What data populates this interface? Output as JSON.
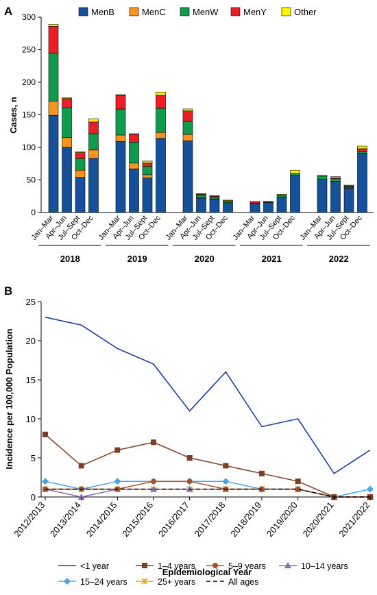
{
  "chart_data": [
    {
      "panel": "A",
      "type": "bar",
      "stacked": true,
      "ylabel": "Cases, n",
      "ylim": [
        0,
        300
      ],
      "yticks": [
        0,
        50,
        100,
        150,
        200,
        250,
        300
      ],
      "legend_position": "top",
      "categories": [
        "Jan–Mar",
        "Apr–Jun",
        "Jul–Sept",
        "Oct–Dec"
      ],
      "groups": [
        {
          "label": "2018",
          "bars": [
            {
              "MenB": 149,
              "MenC": 22,
              "MenW": 74,
              "MenY": 41,
              "Other": 3
            },
            {
              "MenB": 100,
              "MenC": 15,
              "MenW": 46,
              "MenY": 14,
              "Other": 1
            },
            {
              "MenB": 54,
              "MenC": 11,
              "MenW": 18,
              "MenY": 9,
              "Other": 1
            },
            {
              "MenB": 83,
              "MenC": 13,
              "MenW": 25,
              "MenY": 18,
              "Other": 5
            }
          ]
        },
        {
          "label": "2019",
          "bars": [
            {
              "MenB": 109,
              "MenC": 10,
              "MenW": 40,
              "MenY": 21,
              "Other": 1
            },
            {
              "MenB": 67,
              "MenC": 9,
              "MenW": 32,
              "MenY": 12,
              "Other": 1
            },
            {
              "MenB": 53,
              "MenC": 5,
              "MenW": 13,
              "MenY": 5,
              "Other": 3
            },
            {
              "MenB": 114,
              "MenC": 9,
              "MenW": 37,
              "MenY": 20,
              "Other": 5
            }
          ]
        },
        {
          "label": "2020",
          "bars": [
            {
              "MenB": 110,
              "MenC": 10,
              "MenW": 20,
              "MenY": 16,
              "Other": 3
            },
            {
              "MenB": 22,
              "MenC": 1,
              "MenW": 4,
              "MenY": 1,
              "Other": 1
            },
            {
              "MenB": 20,
              "MenC": 1,
              "MenW": 3,
              "MenY": 1,
              "Other": 1
            },
            {
              "MenB": 15,
              "MenC": 0,
              "MenW": 3,
              "MenY": 0,
              "Other": 1
            }
          ]
        },
        {
          "label": "2021",
          "bars": [
            {
              "MenB": 13,
              "MenC": 0,
              "MenW": 1,
              "MenY": 3,
              "Other": 0
            },
            {
              "MenB": 15,
              "MenC": 0,
              "MenW": 1,
              "MenY": 1,
              "Other": 0
            },
            {
              "MenB": 24,
              "MenC": 0,
              "MenW": 3,
              "MenY": 0,
              "Other": 1
            },
            {
              "MenB": 57,
              "MenC": 0,
              "MenW": 3,
              "MenY": 0,
              "Other": 5
            }
          ]
        },
        {
          "label": "2022",
          "bars": [
            {
              "MenB": 51,
              "MenC": 0,
              "MenW": 5,
              "MenY": 0,
              "Other": 1
            },
            {
              "MenB": 48,
              "MenC": 0,
              "MenW": 4,
              "MenY": 1,
              "Other": 2
            },
            {
              "MenB": 37,
              "MenC": 1,
              "MenW": 2,
              "MenY": 1,
              "Other": 1
            },
            {
              "MenB": 91,
              "MenC": 0,
              "MenW": 2,
              "MenY": 5,
              "Other": 4
            }
          ]
        }
      ],
      "series": [
        {
          "name": "MenB",
          "color": "#15509b"
        },
        {
          "name": "MenC",
          "color": "#f7931e"
        },
        {
          "name": "MenW",
          "color": "#0e9b4b"
        },
        {
          "name": "MenY",
          "color": "#ee1c25"
        },
        {
          "name": "Other",
          "color": "#fff200"
        }
      ]
    },
    {
      "panel": "B",
      "type": "line",
      "xlabel": "Epidemiological Year",
      "ylabel": "Incidence per 100,000 Population",
      "ylim": [
        0,
        25
      ],
      "yticks": [
        0,
        5,
        10,
        15,
        20,
        25
      ],
      "legend_position": "bottom",
      "x": [
        "2012/2013",
        "2013/2014",
        "2014/2015",
        "2015/2016",
        "2016/2017",
        "2017/2018",
        "2018/2019",
        "2019/2020",
        "2020/2021",
        "2021/2022"
      ],
      "series": [
        {
          "name": "<1 year",
          "color": "#1f3f99",
          "marker": "none",
          "dash": "solid",
          "values": [
            23,
            22,
            19,
            17,
            11,
            16,
            9,
            10,
            3,
            6
          ]
        },
        {
          "name": "1–4 years",
          "color": "#7b3f26",
          "marker": "square",
          "dash": "solid",
          "values": [
            8,
            4,
            6,
            7,
            5,
            4,
            3,
            2,
            0,
            0
          ]
        },
        {
          "name": "5–9 years",
          "color": "#a0522d",
          "marker": "circle",
          "dash": "solid",
          "values": [
            1,
            1,
            1,
            2,
            2,
            1,
            1,
            1,
            0,
            0
          ]
        },
        {
          "name": "10–14 years",
          "color": "#8a6bb0",
          "marker": "triangle",
          "dash": "solid",
          "values": [
            1,
            0,
            1,
            1,
            1,
            1,
            1,
            1,
            0,
            0
          ]
        },
        {
          "name": "15–24 years",
          "color": "#4aa3e8",
          "marker": "diamond",
          "dash": "solid",
          "values": [
            2,
            1,
            2,
            2,
            2,
            2,
            1,
            1,
            0,
            1
          ]
        },
        {
          "name": "25+ years",
          "color": "#e8a317",
          "marker": "x",
          "dash": "solid",
          "values": [
            1,
            1,
            1,
            1,
            1,
            1,
            1,
            1,
            0,
            0
          ]
        },
        {
          "name": "All ages",
          "color": "#000000",
          "marker": "none",
          "dash": "dashed",
          "values": [
            1,
            1,
            1,
            1,
            1,
            1,
            1,
            1,
            0,
            0
          ]
        }
      ]
    }
  ]
}
